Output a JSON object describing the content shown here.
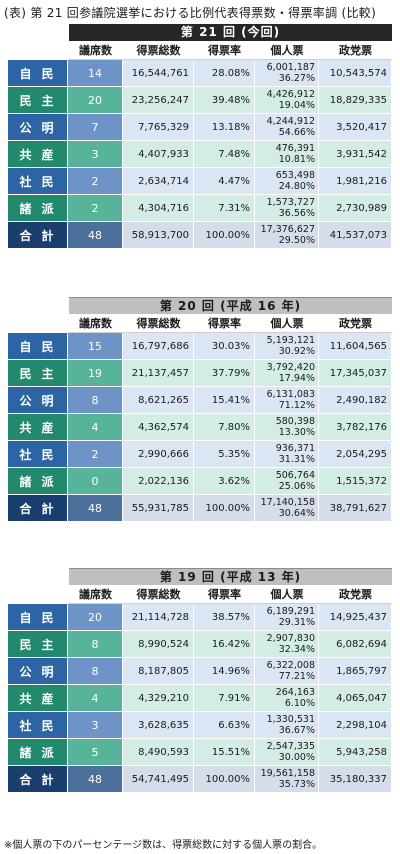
{
  "title": "(表) 第 21 回参議院選挙における比例代表得票数・得票率調 (比較)",
  "columns": [
    "議席数",
    "得票総数",
    "得票率",
    "個人票",
    "政党票"
  ],
  "elections": [
    {
      "label": "第 21 回 (今回)",
      "rows": [
        {
          "party": "自民",
          "seats": "14",
          "total": "16,544,761",
          "rate": "28.08%",
          "individual": "6,001,187",
          "individual_pct": "36.27%",
          "party_votes": "10,543,574"
        },
        {
          "party": "民主",
          "seats": "20",
          "total": "23,256,247",
          "rate": "39.48%",
          "individual": "4,426,912",
          "individual_pct": "19.04%",
          "party_votes": "18,829,335"
        },
        {
          "party": "公明",
          "seats": "7",
          "total": "7,765,329",
          "rate": "13.18%",
          "individual": "4,244,912",
          "individual_pct": "54.66%",
          "party_votes": "3,520,417"
        },
        {
          "party": "共産",
          "seats": "3",
          "total": "4,407,933",
          "rate": "7.48%",
          "individual": "476,391",
          "individual_pct": "10.81%",
          "party_votes": "3,931,542"
        },
        {
          "party": "社民",
          "seats": "2",
          "total": "2,634,714",
          "rate": "4.47%",
          "individual": "653,498",
          "individual_pct": "24.80%",
          "party_votes": "1,981,216"
        },
        {
          "party": "諸派",
          "seats": "2",
          "total": "4,304,716",
          "rate": "7.31%",
          "individual": "1,573,727",
          "individual_pct": "36.56%",
          "party_votes": "2,730,989"
        },
        {
          "party": "合計",
          "seats": "48",
          "total": "58,913,700",
          "rate": "100.00%",
          "individual": "17,376,627",
          "individual_pct": "29.50%",
          "party_votes": "41,537,073"
        }
      ]
    },
    {
      "label": "第 20 回 (平成 16 年)",
      "rows": [
        {
          "party": "自民",
          "seats": "15",
          "total": "16,797,686",
          "rate": "30.03%",
          "individual": "5,193,121",
          "individual_pct": "30.92%",
          "party_votes": "11,604,565"
        },
        {
          "party": "民主",
          "seats": "19",
          "total": "21,137,457",
          "rate": "37.79%",
          "individual": "3,792,420",
          "individual_pct": "17.94%",
          "party_votes": "17,345,037"
        },
        {
          "party": "公明",
          "seats": "8",
          "total": "8,621,265",
          "rate": "15.41%",
          "individual": "6,131,083",
          "individual_pct": "71.12%",
          "party_votes": "2,490,182"
        },
        {
          "party": "共産",
          "seats": "4",
          "total": "4,362,574",
          "rate": "7.80%",
          "individual": "580,398",
          "individual_pct": "13.30%",
          "party_votes": "3,782,176"
        },
        {
          "party": "社民",
          "seats": "2",
          "total": "2,990,666",
          "rate": "5.35%",
          "individual": "936,371",
          "individual_pct": "31.31%",
          "party_votes": "2,054,295"
        },
        {
          "party": "諸派",
          "seats": "0",
          "total": "2,022,136",
          "rate": "3.62%",
          "individual": "506,764",
          "individual_pct": "25.06%",
          "party_votes": "1,515,372"
        },
        {
          "party": "合計",
          "seats": "48",
          "total": "55,931,785",
          "rate": "100.00%",
          "individual": "17,140,158",
          "individual_pct": "30.64%",
          "party_votes": "38,791,627"
        }
      ]
    },
    {
      "label": "第 19 回 (平成 13 年)",
      "rows": [
        {
          "party": "自民",
          "seats": "20",
          "total": "21,114,728",
          "rate": "38.57%",
          "individual": "6,189,291",
          "individual_pct": "29.31%",
          "party_votes": "14,925,437"
        },
        {
          "party": "民主",
          "seats": "8",
          "total": "8,990,524",
          "rate": "16.42%",
          "individual": "2,907,830",
          "individual_pct": "32.34%",
          "party_votes": "6,082,694"
        },
        {
          "party": "公明",
          "seats": "8",
          "total": "8,187,805",
          "rate": "14.96%",
          "individual": "6,322,008",
          "individual_pct": "77.21%",
          "party_votes": "1,865,797"
        },
        {
          "party": "共産",
          "seats": "4",
          "total": "4,329,210",
          "rate": "7.91%",
          "individual": "264,163",
          "individual_pct": "6.10%",
          "party_votes": "4,065,047"
        },
        {
          "party": "社民",
          "seats": "3",
          "total": "3,628,635",
          "rate": "6.63%",
          "individual": "1,330,531",
          "individual_pct": "36.67%",
          "party_votes": "2,298,104"
        },
        {
          "party": "諸派",
          "seats": "5",
          "total": "8,490,593",
          "rate": "15.51%",
          "individual": "2,547,335",
          "individual_pct": "30.00%",
          "party_votes": "5,943,258"
        },
        {
          "party": "合計",
          "seats": "48",
          "total": "54,741,495",
          "rate": "100.00%",
          "individual": "19,561,158",
          "individual_pct": "35.73%",
          "party_votes": "35,180,337"
        }
      ]
    }
  ],
  "footnote": "※個人票の下のパーセンテージ数は、得票総数に対する個人票の割合。",
  "colors": {
    "party_blue": "#2c64a4",
    "seats_blue": "#6e93c6",
    "data_blue": "#dbe5f3",
    "party_green": "#23896e",
    "seats_green": "#57b49b",
    "data_green": "#d4ede4",
    "banner_dark": "#262626",
    "banner_grey": "#bfbfbf"
  }
}
